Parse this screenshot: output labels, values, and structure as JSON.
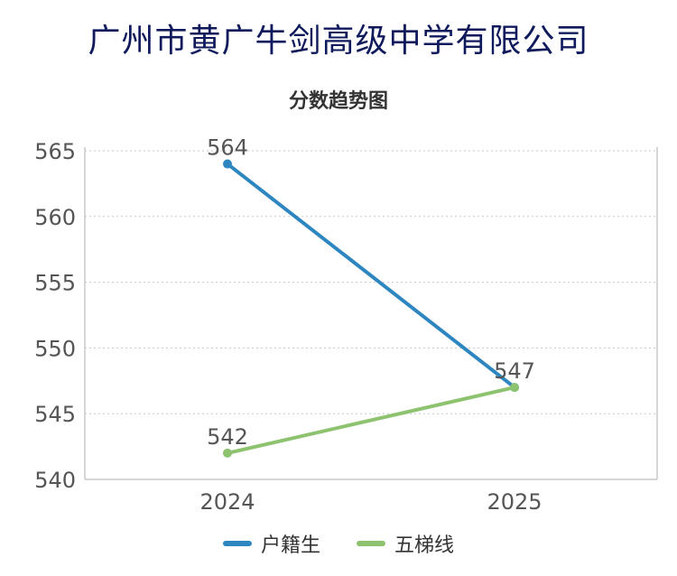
{
  "page": {
    "heading": "广州市黄广牛剑高级中学有限公司"
  },
  "chart_data": {
    "type": "line",
    "title": "分数趋势图",
    "x": [
      "2024",
      "2025"
    ],
    "ylim": [
      540,
      565
    ],
    "yticks": [
      "540",
      "545",
      "550",
      "555",
      "560",
      "565"
    ],
    "grid": true,
    "legend_position": "bottom",
    "series": [
      {
        "name": "户籍生",
        "values": [
          564,
          547
        ],
        "labels": [
          "564",
          "547"
        ],
        "color": "#2e86c1"
      },
      {
        "name": "五梯线",
        "values": [
          542,
          547
        ],
        "labels": [
          "542",
          ""
        ],
        "color": "#8dc26f"
      }
    ]
  }
}
